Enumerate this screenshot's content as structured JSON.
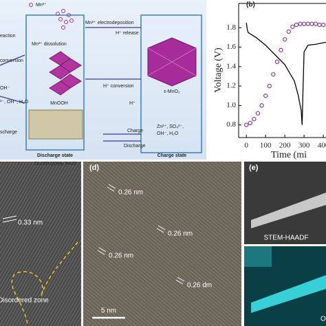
{
  "schematic": {
    "legend": "Mn²⁺",
    "labels": [
      "eaction",
      "conversion",
      "OH⁻",
      "²⁻, OH⁻, H₂O",
      "scharge",
      "Mn²⁺ dissolution",
      "MnOOH",
      "Zn₄(SO₄)(OH)₆ 5H₂O",
      "Mn²⁺ electrodeposition",
      "H⁺ release",
      "H⁺ conversion",
      "H⁺",
      "ε-MnO₂",
      "Zn²⁺, SO₄²⁻,",
      "OH⁻, H₂O",
      "Charge",
      "Discharge"
    ],
    "discharge_state": "Discharge state",
    "charge_state": "Charge state"
  },
  "chart_data": {
    "type": "line",
    "panel_label": "(b)",
    "xlabel": "Time (mi",
    "ylabel": "Voltage (V)",
    "xlim": [
      -40,
      414
    ],
    "ylim": [
      0.67,
      2.05
    ],
    "xticks": [
      0,
      100,
      200,
      300,
      400
    ],
    "yticks": [
      {
        "value": 0.8,
        "label": "0.8"
      },
      {
        "value": 1.0,
        "label": "1.0"
      },
      {
        "value": 1.2,
        "label": "1.2"
      },
      {
        "value": 1.4,
        "label": "1.4"
      },
      {
        "value": 1.6,
        "label": "1.6"
      },
      {
        "value": 1.8,
        "label": "1.8"
      }
    ],
    "series": [
      {
        "color": "#000000",
        "marker": false,
        "x": [
          0,
          5,
          10,
          50,
          100,
          150,
          200,
          250,
          270,
          285,
          290,
          295,
          300,
          320,
          360,
          414
        ],
        "values": [
          1.85,
          1.78,
          1.75,
          1.7,
          1.62,
          1.52,
          1.42,
          1.25,
          1.1,
          0.95,
          0.8,
          1.2,
          1.55,
          1.62,
          1.63,
          1.65
        ]
      },
      {
        "color": "#8e3a9e",
        "marker": true,
        "x": [
          0,
          20,
          40,
          60,
          80,
          100,
          120,
          140,
          160,
          180,
          200,
          220,
          240,
          260,
          280,
          300,
          320,
          340,
          360,
          380,
          400
        ],
        "values": [
          0.8,
          0.82,
          0.86,
          0.92,
          1.0,
          1.1,
          1.2,
          1.32,
          1.45,
          1.57,
          1.68,
          1.76,
          1.81,
          1.83,
          1.84,
          1.84,
          1.84,
          1.84,
          1.84,
          1.83,
          1.83
        ]
      }
    ]
  },
  "micrographs": {
    "c": {
      "fringe": "0.33 nm",
      "zone": "Disordered zone"
    },
    "d": {
      "panel_label": "(d)",
      "fringes": [
        "0.26 nm",
        "0.26 nm",
        "0.26 nm",
        "0.26 dm"
      ],
      "scale": "5 nm"
    },
    "e": {
      "panel_label": "(e)",
      "top": "STEM-HAADF",
      "bottom": "O"
    }
  }
}
